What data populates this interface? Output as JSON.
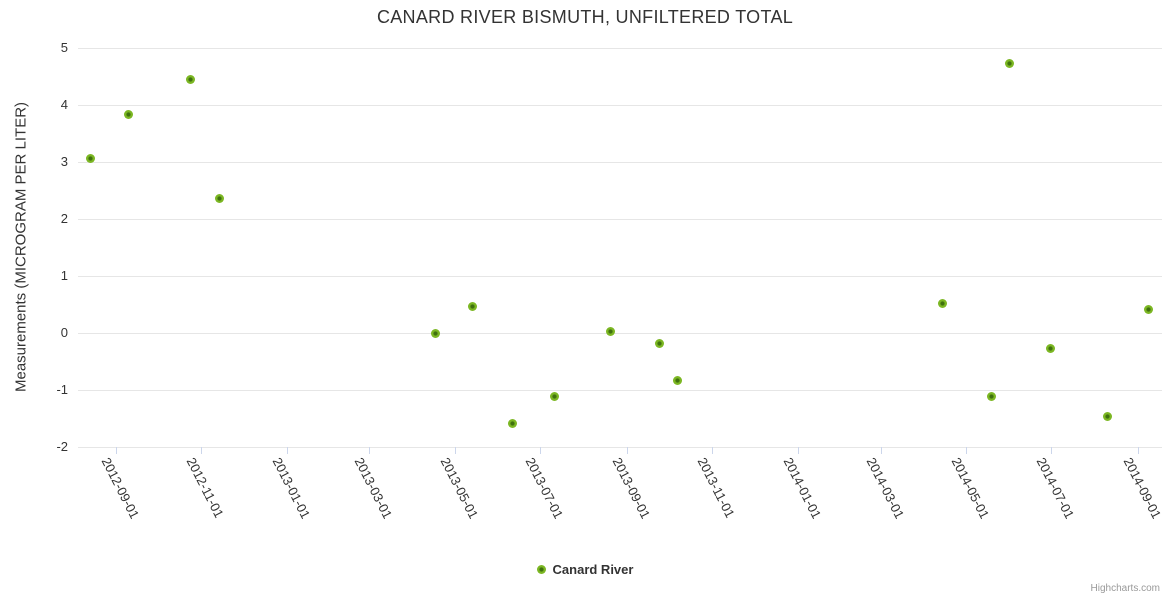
{
  "title": "CANARD RIVER BISMUTH, UNFILTERED TOTAL",
  "legend": {
    "series_label": "Canard River"
  },
  "credits_label": "Highcharts.com",
  "colors": {
    "accent_green": "#7cb723",
    "marker_core": "#3f700e",
    "grid": "#e6e6e6",
    "axis_line": "#ccd6eb",
    "text": "#333333",
    "credits_text": "#999999"
  },
  "chart_data": {
    "type": "scatter",
    "title": "CANARD RIVER BISMUTH, UNFILTERED TOTAL",
    "xlabel": "",
    "ylabel": "Measurements (MICROGRAM PER LITER)",
    "ylim": [
      -2,
      5
    ],
    "yticks": [
      5,
      4,
      3,
      2,
      1,
      0,
      -1,
      -2
    ],
    "xlim": [
      "2012-08-05",
      "2014-09-18"
    ],
    "xticks": [
      "2012-09-01",
      "2012-11-01",
      "2013-01-01",
      "2013-03-01",
      "2013-05-01",
      "2013-07-01",
      "2013-09-01",
      "2013-11-01",
      "2014-01-01",
      "2014-03-01",
      "2014-05-01",
      "2014-07-01",
      "2014-09-01"
    ],
    "grid": "horizontal",
    "legend_position": "bottom-center",
    "series": [
      {
        "name": "Canard River",
        "points": [
          {
            "x": "2012-08-14",
            "y": 3.07
          },
          {
            "x": "2012-09-10",
            "y": 3.84
          },
          {
            "x": "2012-10-24",
            "y": 4.45
          },
          {
            "x": "2012-11-14",
            "y": 2.36
          },
          {
            "x": "2013-04-17",
            "y": 0.0
          },
          {
            "x": "2013-05-14",
            "y": 0.47
          },
          {
            "x": "2013-06-11",
            "y": -1.59
          },
          {
            "x": "2013-07-11",
            "y": -1.11
          },
          {
            "x": "2013-08-20",
            "y": 0.02
          },
          {
            "x": "2013-09-24",
            "y": -0.18
          },
          {
            "x": "2013-10-07",
            "y": -0.84
          },
          {
            "x": "2014-04-14",
            "y": 0.51
          },
          {
            "x": "2014-05-19",
            "y": -1.11
          },
          {
            "x": "2014-06-01",
            "y": 4.73
          },
          {
            "x": "2014-06-30",
            "y": -0.27
          },
          {
            "x": "2014-08-10",
            "y": -1.47
          },
          {
            "x": "2014-09-08",
            "y": 0.42
          }
        ]
      }
    ]
  }
}
